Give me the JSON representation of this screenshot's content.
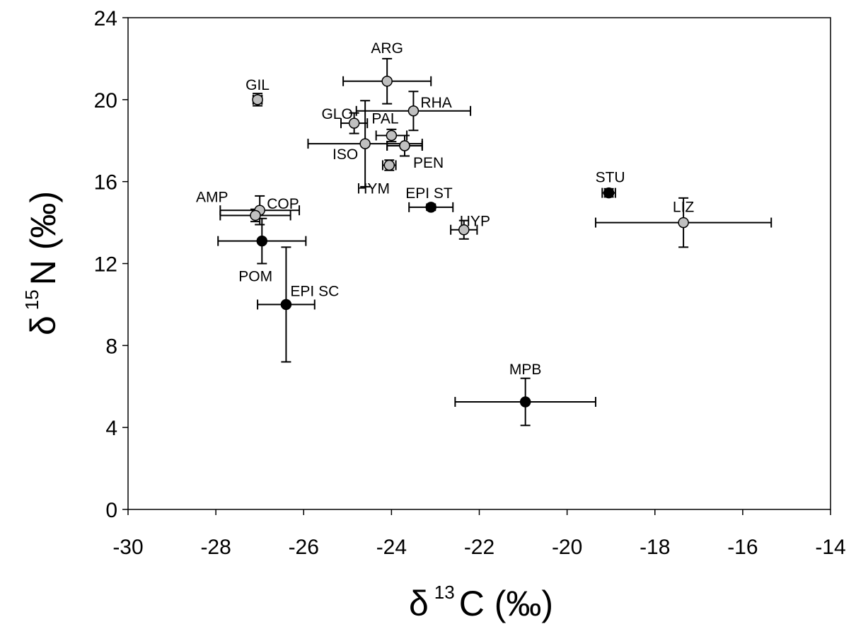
{
  "chart_data": {
    "type": "scatter",
    "title": "",
    "xlabel": {
      "symbol": "δ",
      "sup": "13",
      "main": "C (‰)"
    },
    "ylabel": {
      "symbol": "δ",
      "sup": "15",
      "main": "N (‰)"
    },
    "xlim": [
      -30,
      -14
    ],
    "ylim": [
      0,
      24
    ],
    "xticks": [
      "-30",
      "-28",
      "-26",
      "-24",
      "-22",
      "-20",
      "-18",
      "-16",
      "-14"
    ],
    "yticks": [
      "0",
      "4",
      "8",
      "12",
      "16",
      "20",
      "24"
    ],
    "grid": false,
    "legend": "none",
    "colors": {
      "source": "#000000",
      "consumer": "#c0c0c0",
      "outline": "#000000"
    },
    "points": [
      {
        "label": "ARG",
        "x": -24.1,
        "y": 20.9,
        "xerr": 1.0,
        "yerr": 1.1,
        "group": "consumer"
      },
      {
        "label": "GIL",
        "x": -27.05,
        "y": 20.0,
        "xerr": 0.1,
        "yerr": 0.3,
        "group": "consumer"
      },
      {
        "label": "RHA",
        "x": -23.5,
        "y": 19.45,
        "xerr": 1.3,
        "yerr": 0.95,
        "group": "consumer"
      },
      {
        "label": "GLO",
        "x": -24.85,
        "y": 18.85,
        "xerr": 0.3,
        "yerr": 0.5,
        "group": "consumer"
      },
      {
        "label": "PAL",
        "x": -24.0,
        "y": 18.25,
        "xerr": 0.35,
        "yerr": 0.3,
        "group": "consumer"
      },
      {
        "label": "",
        "x": -23.7,
        "y": 17.75,
        "xerr": 0.4,
        "yerr": 0.5,
        "group": "consumer"
      },
      {
        "label": "ISO",
        "x": -24.6,
        "y": 17.85,
        "xerr": 1.3,
        "yerr": 2.1,
        "group": "consumer"
      },
      {
        "label": "PEN",
        "x": -23.7,
        "y": 17.75,
        "xerr": 0.4,
        "yerr": 0.5,
        "group": "consumer"
      },
      {
        "label": "HYM",
        "x": -24.05,
        "y": 16.8,
        "xerr": 0.15,
        "yerr": 0.25,
        "group": "consumer"
      },
      {
        "label": "EPI ST",
        "x": -23.1,
        "y": 14.75,
        "xerr": 0.5,
        "yerr": 0.15,
        "group": "source"
      },
      {
        "label": "STU",
        "x": -19.05,
        "y": 15.45,
        "xerr": 0.15,
        "yerr": 0.2,
        "group": "source"
      },
      {
        "label": "LIZ",
        "x": -17.35,
        "y": 14.0,
        "xerr": 2.0,
        "yerr": 1.2,
        "group": "consumer"
      },
      {
        "label": "HYP",
        "x": -22.35,
        "y": 13.65,
        "xerr": 0.3,
        "yerr": 0.45,
        "group": "consumer"
      },
      {
        "label": "COP",
        "x": -27.0,
        "y": 14.6,
        "xerr": 0.9,
        "yerr": 0.7,
        "group": "consumer"
      },
      {
        "label": "AMP",
        "x": -27.1,
        "y": 14.35,
        "xerr": 0.8,
        "yerr": 0.3,
        "group": "consumer"
      },
      {
        "label": "POM",
        "x": -26.95,
        "y": 13.1,
        "xerr": 1.0,
        "yerr": 1.1,
        "group": "source"
      },
      {
        "label": "EPI SC",
        "x": -26.4,
        "y": 10.0,
        "xerr": 0.65,
        "yerr": 2.8,
        "group": "source"
      },
      {
        "label": "MPB",
        "x": -20.95,
        "y": 5.25,
        "xerr": 1.6,
        "yerr": 1.15,
        "group": "source"
      }
    ]
  }
}
